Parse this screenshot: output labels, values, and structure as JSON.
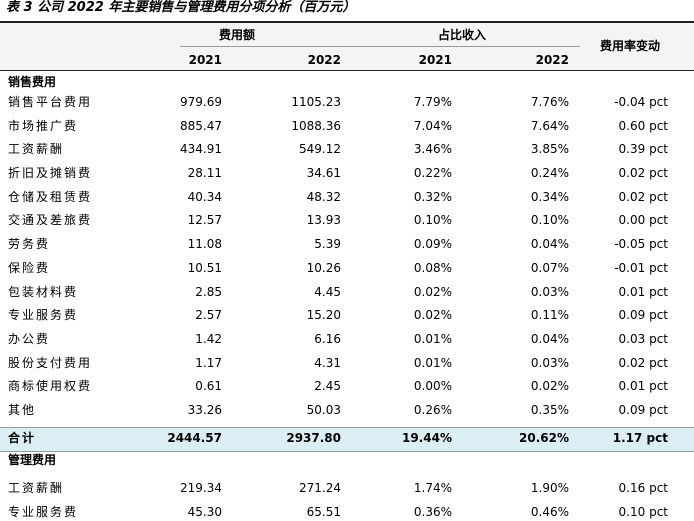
{
  "title": "表 3 公司 2022 年主要销售与管理费用分项分析（百万元）",
  "header": {
    "group1": "费用额",
    "group2": "占比收入",
    "change": "费用率变动",
    "years": [
      "2021",
      "2022",
      "2021",
      "2022"
    ]
  },
  "sections": [
    {
      "name": "销售费用",
      "rows": [
        [
          "销售平台费用",
          "979.69",
          "1105.23",
          "7.79%",
          "7.76%",
          "-0.04 pct"
        ],
        [
          "市场推广费",
          "885.47",
          "1088.36",
          "7.04%",
          "7.64%",
          "0.60 pct"
        ],
        [
          "工资薪酬",
          "434.91",
          "549.12",
          "3.46%",
          "3.85%",
          "0.39 pct"
        ],
        [
          "折旧及摊销费",
          "28.11",
          "34.61",
          "0.22%",
          "0.24%",
          "0.02 pct"
        ],
        [
          "仓储及租赁费",
          "40.34",
          "48.32",
          "0.32%",
          "0.34%",
          "0.02 pct"
        ],
        [
          "交通及差旅费",
          "12.57",
          "13.93",
          "0.10%",
          "0.10%",
          "0.00 pct"
        ],
        [
          "劳务费",
          "11.08",
          "5.39",
          "0.09%",
          "0.04%",
          "-0.05 pct"
        ],
        [
          "保险费",
          "10.51",
          "10.26",
          "0.08%",
          "0.07%",
          "-0.01 pct"
        ],
        [
          "包装材料费",
          "2.85",
          "4.45",
          "0.02%",
          "0.03%",
          "0.01 pct"
        ],
        [
          "专业服务费",
          "2.57",
          "15.20",
          "0.02%",
          "0.11%",
          "0.09 pct"
        ],
        [
          "办公费",
          "1.42",
          "6.16",
          "0.01%",
          "0.04%",
          "0.03 pct"
        ],
        [
          "股份支付费用",
          "1.17",
          "4.31",
          "0.01%",
          "0.03%",
          "0.02 pct"
        ],
        [
          "商标使用权费",
          "0.61",
          "2.45",
          "0.00%",
          "0.02%",
          "0.01 pct"
        ],
        [
          "其他",
          "33.26",
          "50.03",
          "0.26%",
          "0.35%",
          "0.09 pct"
        ]
      ],
      "total": [
        "合计",
        "2444.57",
        "2937.80",
        "19.44%",
        "20.62%",
        "1.17 pct"
      ]
    },
    {
      "name": "管理费用",
      "rows": [
        [
          "工资薪酬",
          "219.34",
          "271.24",
          "1.74%",
          "1.90%",
          "0.16 pct"
        ],
        [
          "专业服务费",
          "45.30",
          "65.51",
          "0.36%",
          "0.46%",
          "0.10 pct"
        ]
      ]
    }
  ]
}
